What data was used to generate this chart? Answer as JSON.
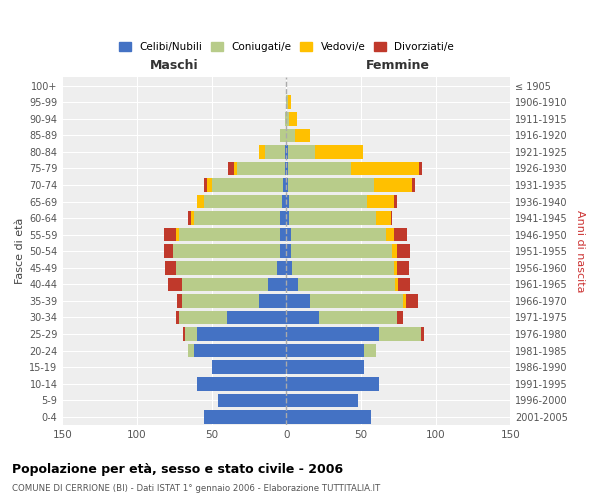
{
  "age_groups": [
    "0-4",
    "5-9",
    "10-14",
    "15-19",
    "20-24",
    "25-29",
    "30-34",
    "35-39",
    "40-44",
    "45-49",
    "50-54",
    "55-59",
    "60-64",
    "65-69",
    "70-74",
    "75-79",
    "80-84",
    "85-89",
    "90-94",
    "95-99",
    "100+"
  ],
  "birth_years": [
    "2001-2005",
    "1996-2000",
    "1991-1995",
    "1986-1990",
    "1981-1985",
    "1976-1980",
    "1971-1975",
    "1966-1970",
    "1961-1965",
    "1956-1960",
    "1951-1955",
    "1946-1950",
    "1941-1945",
    "1936-1940",
    "1931-1935",
    "1926-1930",
    "1921-1925",
    "1916-1920",
    "1911-1915",
    "1906-1910",
    "≤ 1905"
  ],
  "males_celibe": [
    55,
    46,
    60,
    50,
    62,
    60,
    40,
    18,
    12,
    6,
    4,
    4,
    4,
    3,
    2,
    1,
    1,
    0,
    0,
    0,
    0
  ],
  "males_coniugato": [
    0,
    0,
    0,
    0,
    4,
    8,
    32,
    52,
    58,
    68,
    72,
    68,
    58,
    52,
    48,
    32,
    13,
    4,
    1,
    0,
    0
  ],
  "males_vedovo": [
    0,
    0,
    0,
    0,
    0,
    0,
    0,
    0,
    0,
    0,
    0,
    2,
    2,
    5,
    3,
    2,
    4,
    0,
    0,
    0,
    0
  ],
  "males_divorziato": [
    0,
    0,
    0,
    0,
    0,
    1,
    2,
    3,
    9,
    7,
    6,
    8,
    2,
    0,
    2,
    4,
    0,
    0,
    0,
    0,
    0
  ],
  "females_nubile": [
    57,
    48,
    62,
    52,
    52,
    62,
    22,
    16,
    8,
    4,
    3,
    3,
    2,
    2,
    1,
    1,
    1,
    0,
    0,
    0,
    0
  ],
  "females_coniugata": [
    0,
    0,
    0,
    0,
    8,
    28,
    52,
    62,
    65,
    68,
    68,
    64,
    58,
    52,
    58,
    42,
    18,
    6,
    2,
    1,
    0
  ],
  "females_vedova": [
    0,
    0,
    0,
    0,
    0,
    0,
    0,
    2,
    2,
    2,
    3,
    5,
    10,
    18,
    25,
    46,
    32,
    10,
    5,
    2,
    0
  ],
  "females_divorziata": [
    0,
    0,
    0,
    0,
    0,
    2,
    4,
    8,
    8,
    8,
    9,
    9,
    1,
    2,
    2,
    2,
    0,
    0,
    0,
    0,
    0
  ],
  "color_celibe": "#4472c4",
  "color_coniugato": "#b8cc8a",
  "color_vedovo": "#ffc000",
  "color_divorziato": "#c0392b",
  "title": "Popolazione per età, sesso e stato civile - 2006",
  "subtitle": "COMUNE DI CERRIONE (BI) - Dati ISTAT 1° gennaio 2006 - Elaborazione TUTTITALIA.IT",
  "label_maschi": "Maschi",
  "label_femmine": "Femmine",
  "ylabel_left": "Fasce di età",
  "ylabel_right": "Anni di nascita",
  "legend_labels": [
    "Celibi/Nubili",
    "Coniugati/e",
    "Vedovi/e",
    "Divorziati/e"
  ],
  "xlim": 150,
  "plot_bg_color": "#eeeeee",
  "fig_bg_color": "#ffffff",
  "grid_color": "#ffffff"
}
